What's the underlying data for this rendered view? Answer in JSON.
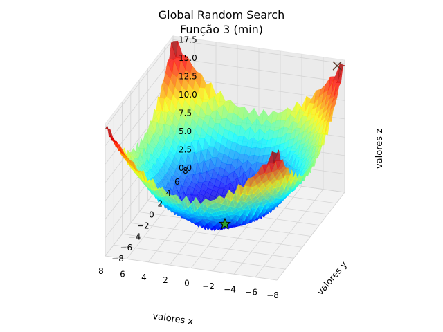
{
  "chart_data": {
    "type": "surface3d",
    "title_lines": [
      "Global Random Search",
      "Função 3 (min)"
    ],
    "xlabel": "valores x",
    "ylabel": "valores y",
    "zlabel": "valores z",
    "xlim": [
      -8,
      8
    ],
    "ylim": [
      -8,
      8
    ],
    "zlim": [
      0,
      17.5
    ],
    "x_ticks": [
      "−8",
      "−6",
      "−4",
      "−2",
      "0",
      "2",
      "4",
      "6",
      "8"
    ],
    "x_tick_values": [
      -8,
      -6,
      -4,
      -2,
      0,
      2,
      4,
      6,
      8
    ],
    "y_ticks": [
      "−8",
      "−6",
      "−4",
      "−2",
      "0",
      "2",
      "4",
      "6",
      "8"
    ],
    "y_tick_values": [
      -8,
      -6,
      -4,
      -2,
      0,
      2,
      4,
      6,
      8
    ],
    "z_ticks": [
      "0.0",
      "2.5",
      "5.0",
      "7.5",
      "10.0",
      "12.5",
      "15.0",
      "17.5"
    ],
    "z_tick_values": [
      0,
      2.5,
      5,
      7.5,
      10,
      12.5,
      15,
      17.5
    ],
    "colormap": "jet",
    "surface": {
      "function": "z = 0.25*(x^2 + y^2) + 1.2*(1 - cos(2*pi*x)*cos(2*pi*y)) approx.",
      "domain": [
        -8,
        8
      ]
    },
    "markers": [
      {
        "name": "start",
        "symbol": "x",
        "x": -7.5,
        "y": 7.5,
        "z": 17.5,
        "color": "#5a3a2a"
      },
      {
        "name": "minimum",
        "symbol": "star",
        "x": 0,
        "y": 0,
        "z": 0,
        "color": "#2ca02c"
      }
    ],
    "grid": true
  }
}
